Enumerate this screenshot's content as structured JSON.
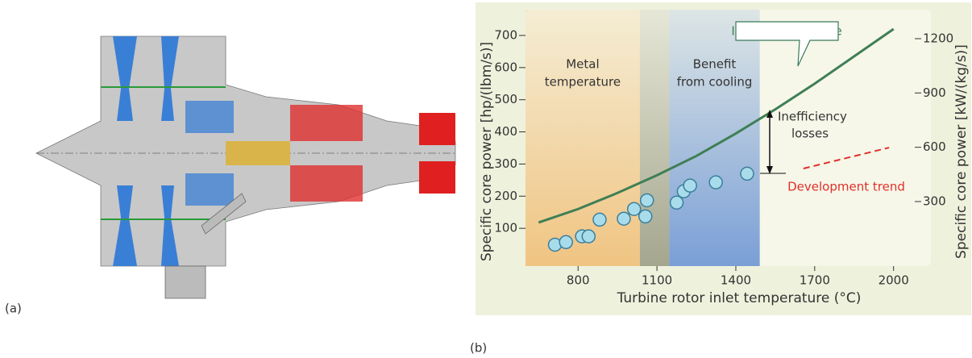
{
  "panel_labels": [
    "(a)",
    "(b)"
  ],
  "chart_data": {
    "type": "scatter",
    "xlabel": "Turbine rotor inlet temperature (°C)",
    "ylabel": "Specific core power [hp/(lbm/s)]",
    "y2label": "Specific core power [kW/(kg/s)]",
    "xlim": [
      600,
      2050
    ],
    "xticks": [
      800,
      1100,
      1400,
      1700,
      2000
    ],
    "ylim": [
      -20,
      740
    ],
    "yticks": [
      100,
      200,
      300,
      400,
      500,
      600,
      700
    ],
    "y2lim": [
      -61,
      1289
    ],
    "y2ticks": [
      300,
      600,
      900,
      1200
    ],
    "bands": [
      {
        "x": [
          600,
          1035
        ],
        "label": [
          "Metal",
          "temperature"
        ],
        "color": "#f0c482"
      },
      {
        "x": [
          1035,
          1147
        ],
        "color": "#a4a68e"
      },
      {
        "x": [
          1147,
          1491
        ],
        "label": [
          "Benefit",
          "from cooling"
        ],
        "color": "#7a9fd6"
      }
    ],
    "annotations": [
      [
        "Inefficiency",
        "losses"
      ]
    ],
    "series": [
      {
        "name": "Ideal performance",
        "type": "line",
        "color": "#3f7f55",
        "x": [
          650,
          800,
          950,
          1100,
          1250,
          1400,
          1550,
          1700,
          1850,
          2000
        ],
        "values": [
          118,
          160,
          210,
          265,
          325,
          395,
          470,
          550,
          635,
          720
        ]
      },
      {
        "name": "Development trend",
        "type": "dashed",
        "color": "#e0302a",
        "x": [
          1657,
          1983
        ],
        "values": [
          286,
          351
        ]
      },
      {
        "type": "scatter",
        "color": "#a9dcea",
        "x": [
          712,
          754,
          815,
          840,
          882,
          974,
          1013,
          1056,
          1062,
          1175,
          1202,
          1226,
          1324,
          1443
        ],
        "values": [
          49,
          57,
          75,
          75,
          127,
          130,
          160,
          137,
          187,
          180,
          215,
          233,
          243,
          270
        ]
      }
    ]
  }
}
